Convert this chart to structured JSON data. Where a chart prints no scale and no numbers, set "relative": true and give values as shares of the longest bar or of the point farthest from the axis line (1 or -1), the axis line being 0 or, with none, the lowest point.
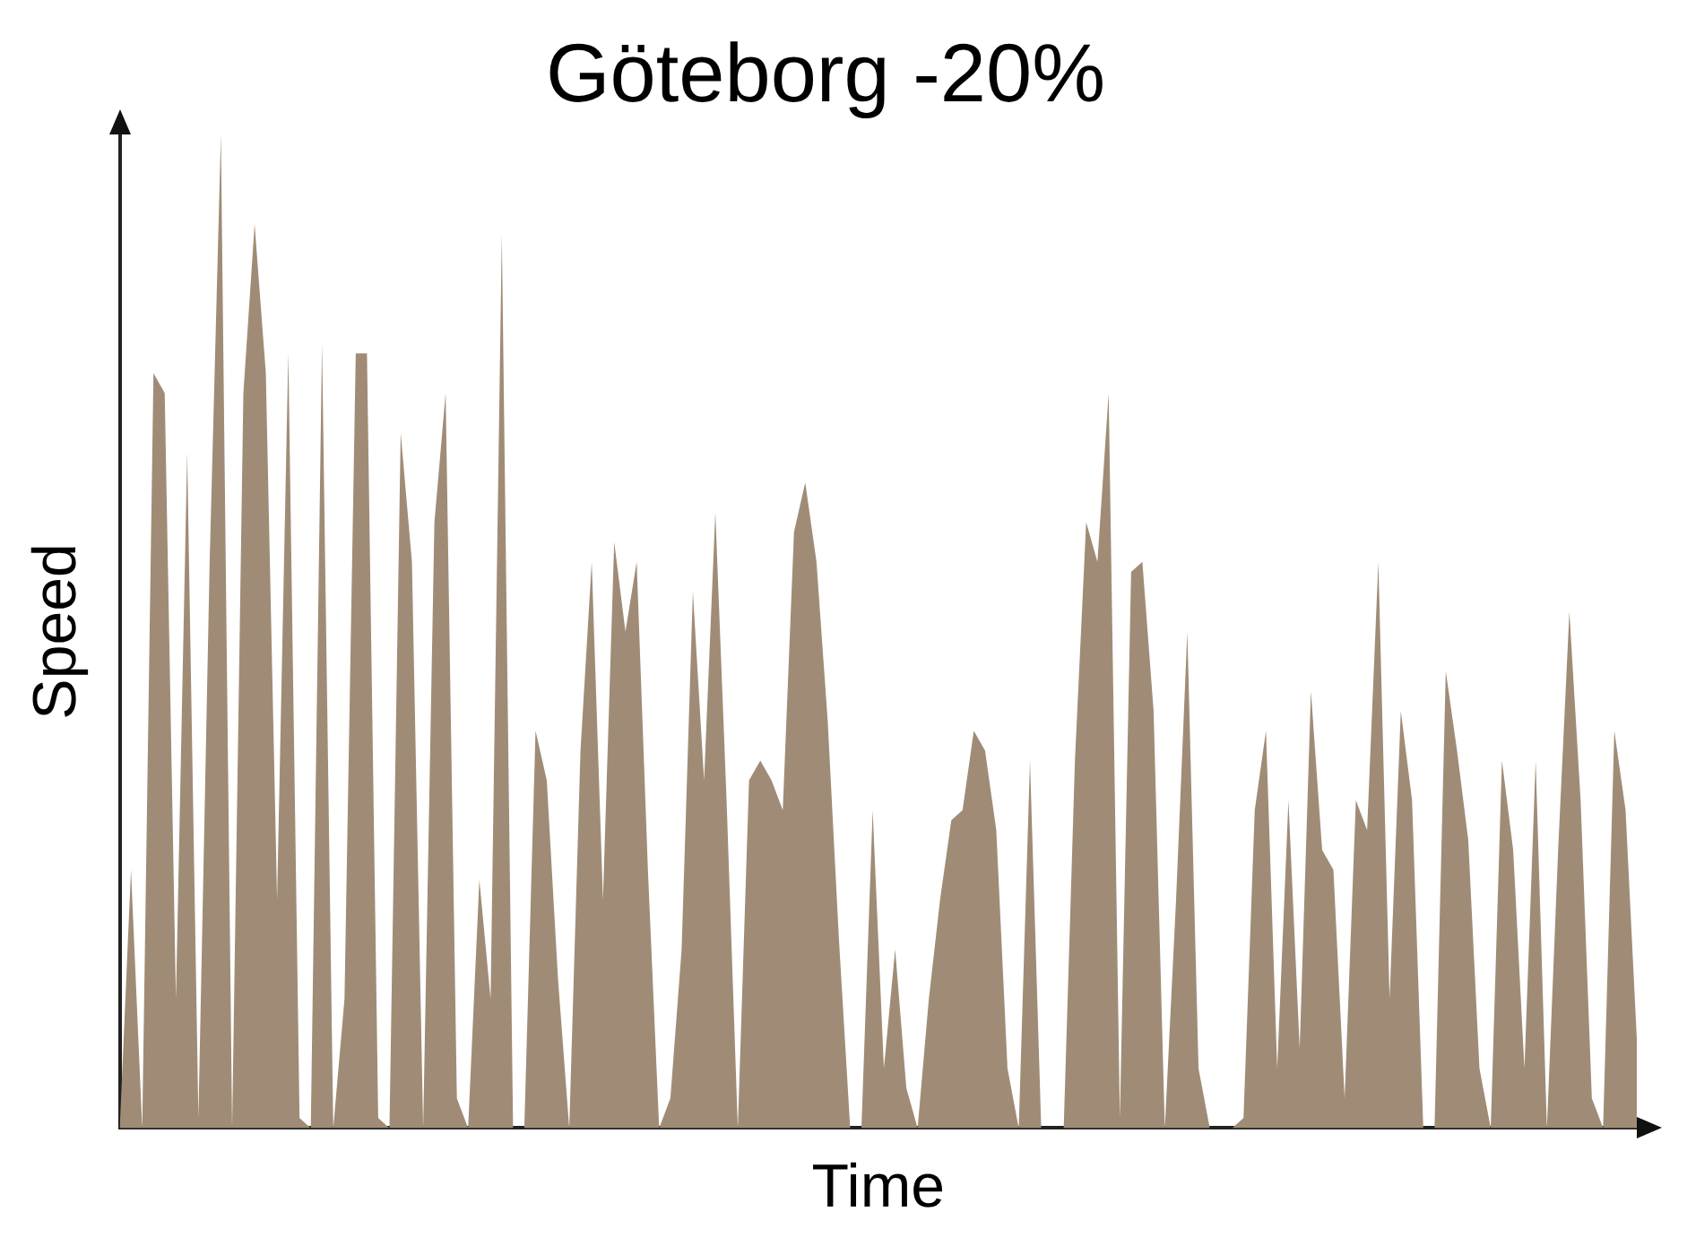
{
  "chart_data": {
    "type": "area",
    "title": "Göteborg -20%",
    "xlabel": "Time",
    "ylabel": "Speed",
    "relative": true,
    "grid": false,
    "legend": false,
    "color": "#a08c76",
    "categories": [
      null,
      null,
      null,
      null,
      null,
      null,
      null,
      null,
      null,
      null,
      null,
      null,
      null,
      null,
      null,
      null,
      null,
      null,
      null,
      null,
      null,
      null,
      null,
      null,
      null,
      null,
      null,
      null,
      null,
      null,
      null,
      null,
      null,
      null,
      null,
      null,
      null,
      null,
      null,
      null,
      null,
      null,
      null,
      null,
      null,
      null,
      null,
      null,
      null,
      null,
      null,
      null,
      null,
      null,
      null,
      null,
      null,
      null,
      null,
      null,
      null,
      null,
      null,
      null,
      null,
      null,
      null,
      null,
      null,
      null,
      null,
      null,
      null,
      null,
      null,
      null,
      null,
      null,
      null,
      null,
      null,
      null,
      null,
      null,
      null,
      null,
      null,
      null,
      null,
      null,
      null,
      null,
      null,
      null,
      null,
      null,
      null,
      null,
      null,
      null,
      null,
      null,
      null,
      null,
      null,
      null,
      null,
      null,
      null,
      null,
      null,
      null,
      null,
      null,
      null,
      null,
      null,
      null,
      null,
      null,
      null,
      null,
      null,
      null,
      null,
      null,
      null,
      null,
      null,
      null,
      null,
      null,
      null,
      null,
      null,
      null
    ],
    "values": [
      0,
      0.26,
      0,
      0.76,
      0.74,
      0.13,
      0.68,
      0.01,
      0.57,
      1,
      0,
      0.74,
      0.91,
      0.76,
      0.23,
      0.78,
      0.01,
      0,
      0.79,
      0,
      0.13,
      0.78,
      0.78,
      0.01,
      0,
      0.7,
      0.57,
      0,
      0.61,
      0.74,
      0.03,
      0,
      0.25,
      0.13,
      0.9,
      0,
      0,
      0.4,
      0.35,
      0.15,
      0,
      0.38,
      0.57,
      0.23,
      0.59,
      0.5,
      0.57,
      0.26,
      0,
      0.03,
      0.18,
      0.54,
      0.35,
      0.62,
      0.33,
      0,
      0.35,
      0.37,
      0.35,
      0.32,
      0.6,
      0.65,
      0.57,
      0.41,
      0.19,
      0,
      0,
      0.32,
      0.06,
      0.18,
      0.04,
      0,
      0.13,
      0.23,
      0.31,
      0.32,
      0.4,
      0.38,
      0.3,
      0.06,
      0,
      0.37,
      0,
      0,
      0,
      0.37,
      0.61,
      0.57,
      0.74,
      0.01,
      0.56,
      0.57,
      0.42,
      0,
      0.23,
      0.5,
      0.06,
      0,
      0,
      0,
      0.01,
      0.32,
      0.4,
      0.06,
      0.33,
      0.08,
      0.44,
      0.28,
      0.26,
      0.03,
      0.33,
      0.3,
      0.57,
      0.13,
      0.42,
      0.33,
      0,
      0,
      0.46,
      0.38,
      0.29,
      0.06,
      0,
      0.37,
      0.28,
      0.06,
      0.37,
      0,
      0.28,
      0.52,
      0.33,
      0.03,
      0,
      0.4,
      0.32,
      0.09
    ]
  }
}
